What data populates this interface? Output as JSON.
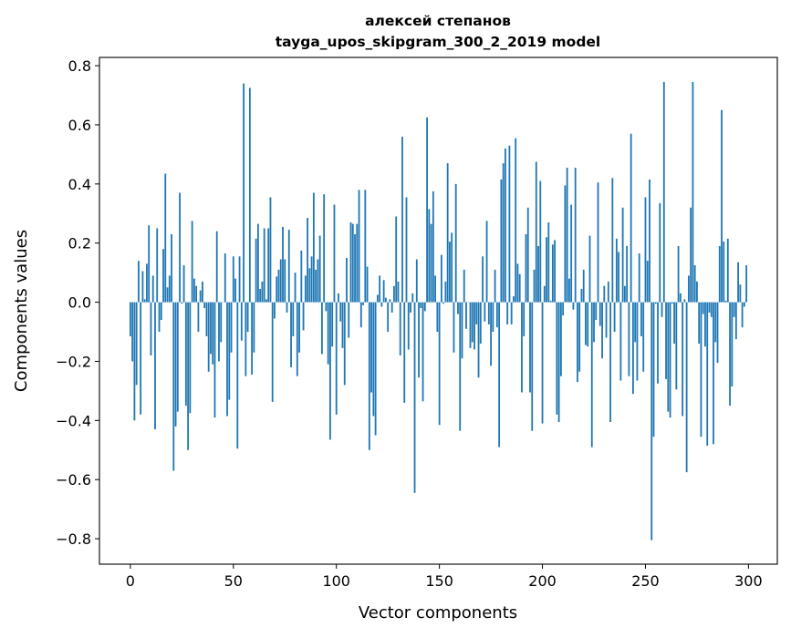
{
  "chart_data": {
    "type": "bar",
    "title": [
      "алексей степанов",
      "tayga_upos_skipgram_300_2_2019 model"
    ],
    "xlabel": "Vector components",
    "ylabel": "Components values",
    "xlim": [
      -15,
      314
    ],
    "ylim": [
      -0.886,
      0.828
    ],
    "xticks": [
      0,
      50,
      100,
      150,
      200,
      250,
      300
    ],
    "xtick_labels": [
      "0",
      "50",
      "100",
      "150",
      "200",
      "250",
      "300"
    ],
    "yticks": [
      -0.8,
      -0.6,
      -0.4,
      -0.2,
      0.0,
      0.2,
      0.4,
      0.6,
      0.8
    ],
    "ytick_labels": [
      "−0.8",
      "−0.6",
      "−0.4",
      "−0.2",
      "0.0",
      "0.2",
      "0.4",
      "0.6",
      "0.8"
    ],
    "grid": false,
    "bar_color": "#1f77b4",
    "values": [
      -0.115,
      -0.2,
      -0.4,
      -0.28,
      0.14,
      -0.38,
      0.105,
      0.01,
      0.13,
      0.26,
      -0.18,
      0.09,
      -0.43,
      0.25,
      -0.1,
      -0.06,
      0.18,
      0.435,
      0.05,
      0.09,
      0.23,
      -0.57,
      -0.42,
      -0.37,
      0.37,
      -0.005,
      0.125,
      -0.35,
      -0.5,
      -0.375,
      0.275,
      0.08,
      0.055,
      -0.1,
      0.04,
      0.07,
      -0.02,
      -0.115,
      -0.235,
      -0.175,
      -0.21,
      -0.39,
      0.24,
      -0.2,
      -0.135,
      0.0,
      0.165,
      -0.385,
      -0.33,
      -0.17,
      0.155,
      0.08,
      -0.495,
      0.155,
      -0.13,
      0.74,
      -0.25,
      -0.1,
      0.725,
      -0.245,
      -0.17,
      0.215,
      0.265,
      0.045,
      0.07,
      0.25,
      0.01,
      0.25,
      0.355,
      -0.337,
      -0.055,
      0.087,
      0.11,
      0.145,
      0.255,
      0.145,
      -0.035,
      0.245,
      -0.22,
      -0.115,
      0.1,
      -0.25,
      -0.17,
      0.175,
      -0.095,
      0.09,
      0.285,
      0.115,
      0.155,
      0.37,
      0.11,
      0.145,
      0.225,
      -0.175,
      0.365,
      -0.03,
      -0.21,
      -0.465,
      -0.15,
      0.33,
      -0.38,
      0.03,
      -0.065,
      -0.155,
      -0.28,
      0.15,
      -0.12,
      0.27,
      0.265,
      0.23,
      0.265,
      0.38,
      -0.085,
      -0.01,
      0.38,
      0.12,
      -0.5,
      -0.305,
      -0.385,
      -0.45,
      0.025,
      0.09,
      -0.015,
      0.075,
      0.015,
      -0.1,
      0.01,
      -0.035,
      0.055,
      0.29,
      0.07,
      -0.18,
      0.56,
      -0.34,
      0.355,
      -0.16,
      -0.035,
      0.03,
      -0.645,
      0.145,
      -0.255,
      -0.02,
      -0.335,
      -0.03,
      0.625,
      0.315,
      0.265,
      0.375,
      0.09,
      -0.1,
      -0.415,
      0.16,
      -0.005,
      0.07,
      0.47,
      0.205,
      0.235,
      -0.17,
      0.4,
      -0.04,
      -0.435,
      -0.19,
      0.11,
      -0.09,
      0.0,
      -0.155,
      -0.135,
      -0.16,
      -0.075,
      -0.255,
      -0.14,
      0.155,
      -0.065,
      0.275,
      -0.075,
      -0.215,
      -0.1,
      0.11,
      -0.085,
      -0.49,
      0.415,
      0.47,
      0.52,
      -0.075,
      0.53,
      -0.075,
      0.02,
      0.555,
      0.13,
      0.095,
      -0.305,
      -0.115,
      0.23,
      0.32,
      -0.305,
      -0.435,
      0.11,
      0.475,
      0.19,
      0.41,
      -0.41,
      0.055,
      0.22,
      0.27,
      0.005,
      0.195,
      0.21,
      -0.38,
      -0.405,
      -0.25,
      -0.045,
      0.395,
      0.455,
      0.08,
      0.33,
      -0.025,
      0.455,
      -0.27,
      -0.235,
      0.045,
      0.11,
      -0.145,
      -0.15,
      0.225,
      -0.49,
      -0.135,
      -0.06,
      0.405,
      -0.08,
      -0.19,
      0.055,
      -0.12,
      0.07,
      -0.405,
      0.42,
      -0.1,
      0.215,
      0.17,
      -0.265,
      0.32,
      0.055,
      0.19,
      -0.25,
      0.57,
      -0.31,
      -0.135,
      -0.265,
      0.165,
      -0.115,
      -0.235,
      0.355,
      0.14,
      0.415,
      -0.805,
      -0.455,
      -0.005,
      -0.275,
      0.335,
      -0.05,
      0.745,
      -0.26,
      -0.37,
      -0.39,
      -0.005,
      -0.14,
      -0.295,
      0.19,
      0.03,
      -0.385,
      0.01,
      -0.575,
      0.09,
      0.32,
      0.745,
      0.125,
      0.07,
      -0.14,
      -0.455,
      -0.04,
      -0.15,
      -0.485,
      -0.035,
      -0.05,
      -0.48,
      -0.135,
      -0.205,
      0.19,
      0.65,
      0.205,
      0.005,
      0.215,
      -0.35,
      -0.285,
      -0.05,
      -0.125,
      0.135,
      0.06,
      -0.085,
      -0.015,
      0.125
    ]
  }
}
